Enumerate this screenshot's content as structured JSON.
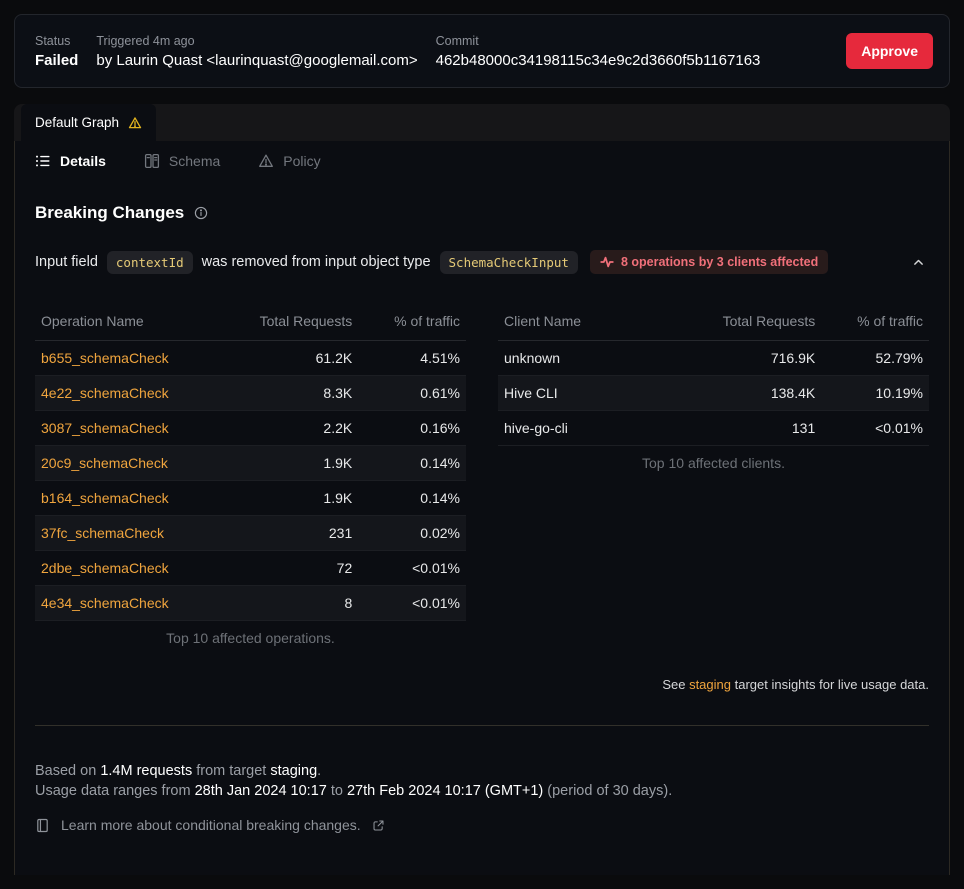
{
  "colors": {
    "accent_orange": "#f0a53e",
    "danger_red": "#e6293c",
    "badge_text_red": "#f1707a",
    "warning_yellow": "#e3b51f",
    "code_yellow": "#e5ca77"
  },
  "top_bar": {
    "status_label": "Status",
    "status_value": "Failed",
    "triggered_label": "Triggered 4m ago",
    "triggered_by": "by Laurin Quast <laurinquast@googlemail.com>",
    "commit_label": "Commit",
    "commit_value": "462b48000c34198115c34e9c2d3660f5b1167163",
    "approve_label": "Approve"
  },
  "graph_tab": {
    "label": "Default Graph"
  },
  "tabs": [
    {
      "label": "Details",
      "active": true
    },
    {
      "label": "Schema",
      "active": false
    },
    {
      "label": "Policy",
      "active": false
    }
  ],
  "breaking": {
    "title": "Breaking Changes",
    "change": {
      "prefix": "Input field",
      "code1": "contextId",
      "middle": "was removed from input object type",
      "code2": "SchemaCheckInput",
      "badge": "8 operations by 3 clients affected"
    }
  },
  "operations_table": {
    "headers": [
      "Operation Name",
      "Total Requests",
      "% of traffic"
    ],
    "first_col_link": true,
    "link_name": "operation-link",
    "rows": [
      [
        "b655_schemaCheck",
        "61.2K",
        "4.51%"
      ],
      [
        "4e22_schemaCheck",
        "8.3K",
        "0.61%"
      ],
      [
        "3087_schemaCheck",
        "2.2K",
        "0.16%"
      ],
      [
        "20c9_schemaCheck",
        "1.9K",
        "0.14%"
      ],
      [
        "b164_schemaCheck",
        "1.9K",
        "0.14%"
      ],
      [
        "37fc_schemaCheck",
        "231",
        "0.02%"
      ],
      [
        "2dbe_schemaCheck",
        "72",
        "<0.01%"
      ],
      [
        "4e34_schemaCheck",
        "8",
        "<0.01%"
      ]
    ],
    "caption": "Top 10 affected operations."
  },
  "clients_table": {
    "headers": [
      "Client Name",
      "Total Requests",
      "% of traffic"
    ],
    "first_col_link": false,
    "rows": [
      [
        "unknown",
        "716.9K",
        "52.79%"
      ],
      [
        "Hive CLI",
        "138.4K",
        "10.19%"
      ],
      [
        "hive-go-cli",
        "131",
        "<0.01%"
      ]
    ],
    "caption": "Top 10 affected clients."
  },
  "insights": {
    "segments": [
      {
        "t": "See "
      },
      {
        "t": "staging",
        "c": "link",
        "name": "staging-insights-link"
      },
      {
        "t": " target insights for live usage data."
      }
    ]
  },
  "footer": {
    "based_line": [
      {
        "t": "Based on ",
        "c": "dim"
      },
      {
        "t": "1.4M requests"
      },
      {
        "t": " from target ",
        "c": "dim"
      },
      {
        "t": "staging"
      },
      {
        "t": ".",
        "c": "dim"
      }
    ],
    "range_line": [
      {
        "t": "Usage data ranges from ",
        "c": "dim"
      },
      {
        "t": "28th Jan 2024 10:17"
      },
      {
        "t": " to ",
        "c": "dim"
      },
      {
        "t": "27th Feb 2024 10:17 (GMT+1)"
      },
      {
        "t": " (period of 30 days).",
        "c": "dim"
      }
    ],
    "learn_more": "Learn more about conditional breaking changes."
  }
}
